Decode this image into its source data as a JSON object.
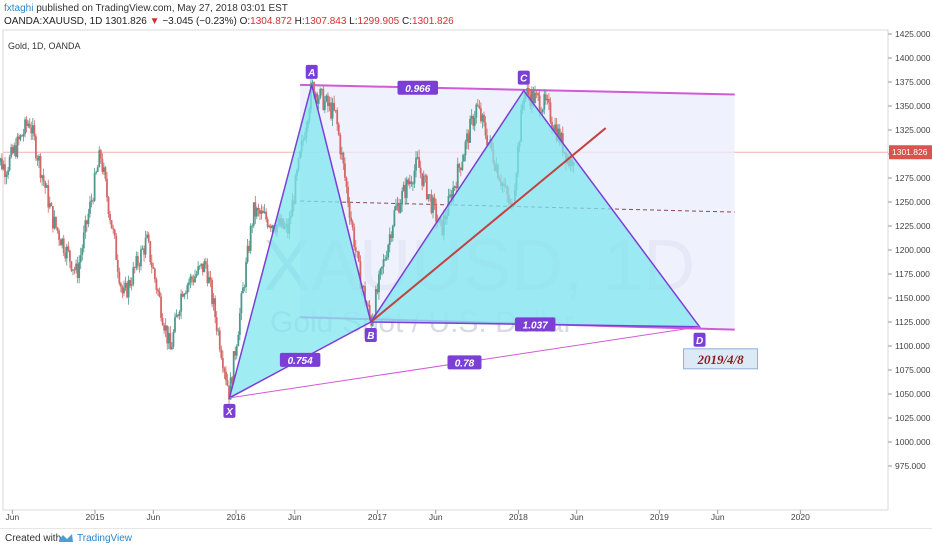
{
  "header": {
    "user": "fxtaghi",
    "published": "published on TradingView.com, May 27, 2018 03:01 EST",
    "symbol": "OANDA:XAUUSD, 1D",
    "price": "1301.826",
    "arrow": "▼",
    "change": "−3.045 (−0.23%)",
    "o_label": "O:",
    "o": "1304.872",
    "h_label": "H:",
    "h": "1307.843",
    "l_label": "L:",
    "l": "1299.905",
    "c_label": "C:",
    "c": "1301.826"
  },
  "footer": {
    "created_with": "Created with",
    "brand": "TradingView"
  },
  "colors": {
    "pattern_fill": "#7fe6ef",
    "pattern_edge": "#7b3fd6",
    "channel": "#d05bd6",
    "channel_fill": "#e9ecfb",
    "trendline": "#c44141",
    "price_line": "#f2b0b0",
    "up": "#4d9a8d",
    "down": "#d46767"
  },
  "chart_data": {
    "type": "candlestick",
    "title": "Gold, 1D, OANDA",
    "watermark": [
      "XAUUSD, 1D",
      "Gold Spot / U.S. Dollar"
    ],
    "ylim": [
      955,
      1430
    ],
    "y_ticks": [
      "1425.000",
      "1400.000",
      "1375.000",
      "1350.000",
      "1325.000",
      "1300.000",
      "1275.000",
      "1250.000",
      "1225.000",
      "1200.000",
      "1175.000",
      "1150.000",
      "1125.000",
      "1100.000",
      "1075.000",
      "1050.000",
      "1025.000",
      "1000.000",
      "975.000"
    ],
    "y_tick_values": [
      1425,
      1400,
      1375,
      1350,
      1325,
      1300,
      1275,
      1250,
      1225,
      1200,
      1175,
      1150,
      1125,
      1100,
      1075,
      1050,
      1025,
      1000,
      975
    ],
    "x_ticks": [
      "Jun",
      "2015",
      "Jun",
      "2016",
      "Jun",
      "2017",
      "Jun",
      "2018",
      "Jun",
      "2019",
      "Jun",
      "2020"
    ],
    "x_tick_dates": [
      "2014-06",
      "2015-01",
      "2015-06",
      "2016-01",
      "2016-06",
      "2017-01",
      "2017-06",
      "2018-01",
      "2018-06",
      "2019-01",
      "2019-06",
      "2020-01"
    ],
    "last_price": 1301.826,
    "last_price_label": "1301.826",
    "price_path": [
      [
        "2014-04",
        1300
      ],
      [
        "2014-05",
        1285
      ],
      [
        "2014-07",
        1335
      ],
      [
        "2014-09",
        1230
      ],
      [
        "2014-11",
        1175
      ],
      [
        "2015-01",
        1300
      ],
      [
        "2015-03",
        1150
      ],
      [
        "2015-05",
        1210
      ],
      [
        "2015-07",
        1095
      ],
      [
        "2015-08",
        1160
      ],
      [
        "2015-10",
        1185
      ],
      [
        "2015-12",
        1050
      ],
      [
        "2016-02",
        1240
      ],
      [
        "2016-05",
        1220
      ],
      [
        "2016-07",
        1370
      ],
      [
        "2016-09",
        1340
      ],
      [
        "2016-11",
        1175
      ],
      [
        "2016-12",
        1125
      ],
      [
        "2017-02",
        1240
      ],
      [
        "2017-04",
        1290
      ],
      [
        "2017-06",
        1220
      ],
      [
        "2017-09",
        1350
      ],
      [
        "2017-12",
        1240
      ],
      [
        "2018-01",
        1365
      ],
      [
        "2018-03",
        1350
      ],
      [
        "2018-05",
        1290
      ],
      [
        "2018-05-25",
        1302
      ]
    ],
    "harmonic_pattern": {
      "points": [
        {
          "label": "X",
          "date": "2015-12",
          "price": 1046
        },
        {
          "label": "A",
          "date": "2016-07",
          "price": 1372
        },
        {
          "label": "B",
          "date": "2016-12",
          "price": 1125
        },
        {
          "label": "C",
          "date": "2018-01",
          "price": 1366
        },
        {
          "label": "D",
          "date": "2019-04",
          "price": 1120
        }
      ],
      "ratios": [
        {
          "label": "0.754",
          "between": "X-B"
        },
        {
          "label": "0.966",
          "between": "A-C"
        },
        {
          "label": "1.037",
          "between": "B-D"
        },
        {
          "label": "0.78",
          "between": "X-D"
        }
      ],
      "target_label": "2019/4/8"
    },
    "channel": {
      "top": [
        [
          "2016-06",
          1372
        ],
        [
          "2019-07",
          1362
        ]
      ],
      "bottom": [
        [
          "2016-06",
          1130
        ],
        [
          "2019-07",
          1117
        ]
      ]
    },
    "trendline": [
      [
        "2016-12",
        1125
      ],
      [
        "2018-08",
        1327
      ]
    ]
  }
}
